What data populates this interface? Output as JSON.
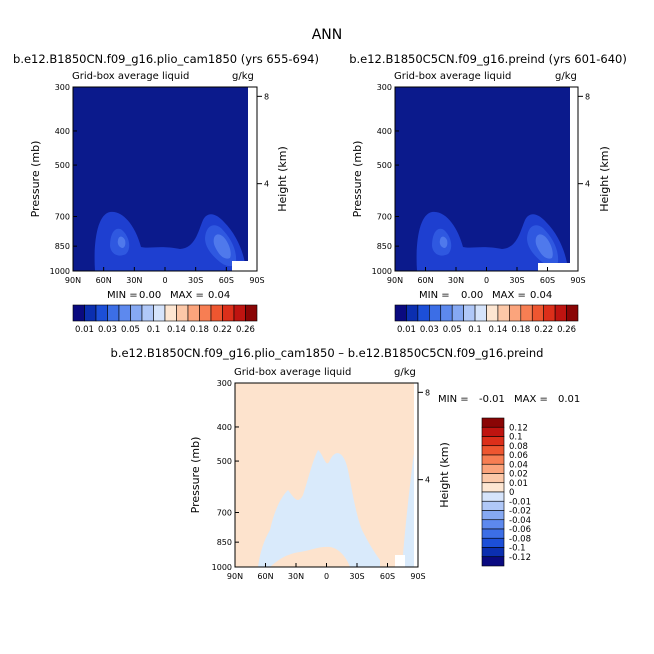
{
  "page": {
    "title": "ANN"
  },
  "colors": {
    "frame": "#000000",
    "dark_blue": "#0b1a8c",
    "white": "#ffffff",
    "diff_pos_light": "#fde3cd",
    "diff_neg_light": "#d9eafb"
  },
  "chart_data": [
    {
      "id": "panel1",
      "type": "heatmap",
      "title": "b.e12.B1850CN.f09_g16.plio_cam1850 (yrs 655-694)",
      "variable_label": "Grid-box average liquid",
      "units": "g/kg",
      "ylabel": "Pressure (mb)",
      "y2label": "Height (km)",
      "x_ticks": [
        "90N",
        "60N",
        "30N",
        "0",
        "30S",
        "60S",
        "90S"
      ],
      "y_ticks": [
        300,
        400,
        500,
        700,
        850,
        1000
      ],
      "y_log": true,
      "ylim": [
        300,
        1000
      ],
      "height_ticks": [
        8,
        4
      ],
      "min_label": "MIN =",
      "min_value": "0.00",
      "max_label": "MAX =",
      "max_value": "0.04"
    },
    {
      "id": "panel2",
      "type": "heatmap",
      "title": "b.e12.B1850C5CN.f09_g16.preind (yrs 601-640)",
      "variable_label": "Grid-box average liquid",
      "units": "g/kg",
      "ylabel": "Pressure (mb)",
      "y2label": "Height (km)",
      "x_ticks": [
        "90N",
        "60N",
        "30N",
        "0",
        "30S",
        "60S",
        "90S"
      ],
      "y_ticks": [
        300,
        400,
        500,
        700,
        850,
        1000
      ],
      "y_log": true,
      "ylim": [
        300,
        1000
      ],
      "height_ticks": [
        8,
        4
      ],
      "min_label": "MIN =",
      "min_value": "0.00",
      "max_label": "MAX =",
      "max_value": "0.04"
    },
    {
      "id": "panel3",
      "type": "heatmap",
      "title": "b.e12.B1850CN.f09_g16.plio_cam1850 – b.e12.B1850C5CN.f09_g16.preind",
      "variable_label": "Grid-box average liquid",
      "units": "g/kg",
      "ylabel": "Pressure (mb)",
      "y2label": "Height (km)",
      "x_ticks": [
        "90N",
        "60N",
        "30N",
        "0",
        "30S",
        "60S",
        "90S"
      ],
      "y_ticks": [
        300,
        400,
        500,
        700,
        850,
        1000
      ],
      "y_log": true,
      "ylim": [
        300,
        1000
      ],
      "height_ticks": [
        8,
        4
      ],
      "min_label": "MIN =",
      "min_value": "-0.01",
      "max_label": "MAX =",
      "max_value": "0.01"
    }
  ],
  "colorbar_main": {
    "labels": [
      "0.01",
      "0.03",
      "0.05",
      "0.1",
      "0.14",
      "0.18",
      "0.22",
      "0.26"
    ],
    "colors": [
      "#0a0a80",
      "#0b2fb0",
      "#1c4fd8",
      "#3c6ee6",
      "#5d89ee",
      "#86a9f3",
      "#b0c8f8",
      "#d6e4fb",
      "#fde6d2",
      "#fcc8a8",
      "#fba47c",
      "#f77e53",
      "#ee5630",
      "#dc2f1a",
      "#bf1410",
      "#8a0505"
    ]
  },
  "colorbar_diff": {
    "labels": [
      "0.12",
      "0.1",
      "0.08",
      "0.06",
      "0.04",
      "0.02",
      "0.01",
      "0",
      "-0.01",
      "-0.02",
      "-0.04",
      "-0.06",
      "-0.08",
      "-0.1",
      "-0.12"
    ],
    "colors": [
      "#8a0505",
      "#bf1410",
      "#dc2f1a",
      "#ee5630",
      "#f77e53",
      "#fba47c",
      "#fcc8a8",
      "#fde6d2",
      "#d6e4fb",
      "#b0c8f8",
      "#86a9f3",
      "#5d89ee",
      "#3c6ee6",
      "#1c4fd8",
      "#0b2fb0",
      "#0a0a80"
    ]
  }
}
